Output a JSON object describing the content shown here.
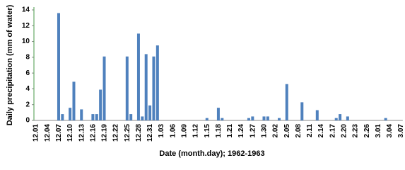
{
  "chart_data": {
    "type": "bar",
    "x_label": "Date (month.day); 1962-1963",
    "y_label": "Daily precipitation  (mm of water)",
    "categories": [
      "12.01",
      null,
      null,
      "12.04",
      null,
      null,
      "12.07",
      null,
      null,
      "12.10",
      null,
      null,
      "12.13",
      null,
      null,
      "12.16",
      null,
      null,
      "12.19",
      null,
      null,
      "12.22",
      null,
      null,
      "12.25",
      null,
      null,
      "12.28",
      null,
      null,
      "12.31",
      null,
      null,
      "1.03",
      null,
      null,
      "1.06",
      null,
      null,
      "1.09",
      null,
      null,
      "1.12",
      null,
      null,
      "1.15",
      null,
      null,
      "1.18",
      null,
      null,
      "1.21",
      null,
      null,
      "1.24",
      null,
      null,
      "1.27",
      null,
      null,
      "1.30",
      null,
      null,
      "2.02",
      null,
      null,
      "2.05",
      null,
      null,
      "2.08",
      null,
      null,
      "2.11",
      null,
      null,
      "2.14",
      null,
      null,
      "2.17",
      null,
      null,
      "2.20",
      null,
      null,
      "2.23",
      null,
      null,
      "2.26",
      null,
      null,
      "3.01",
      null,
      null,
      "3.04",
      null,
      null,
      "3.07"
    ],
    "values": [
      0,
      0,
      0,
      0,
      0,
      0,
      13.6,
      0.8,
      0,
      1.6,
      4.9,
      0,
      1.4,
      0,
      0,
      0.8,
      0.8,
      3.9,
      8.1,
      0,
      0,
      0,
      0,
      0,
      8.1,
      0.8,
      0,
      11,
      0.5,
      8.4,
      1.9,
      8.1,
      9.5,
      0,
      0,
      0,
      0,
      0,
      0,
      0,
      0,
      0,
      0,
      0,
      0,
      0.3,
      0,
      0,
      1.6,
      0.3,
      0,
      0,
      0,
      0,
      0,
      0,
      0.3,
      0.5,
      0,
      0,
      0.5,
      0.5,
      0,
      0,
      0.3,
      0,
      4.6,
      0,
      0,
      0,
      2.3,
      0,
      0,
      0,
      1.3,
      0,
      0,
      0,
      0,
      0.3,
      0.8,
      0,
      0.5,
      0,
      0,
      0,
      0,
      0,
      0,
      0,
      0,
      0,
      0.3,
      0,
      0,
      0,
      0
    ],
    "color": "#4f81bd",
    "ylim": [
      0,
      14
    ],
    "yticks": [
      0,
      2,
      4,
      6,
      8,
      10,
      12,
      14
    ],
    "grid": false
  }
}
